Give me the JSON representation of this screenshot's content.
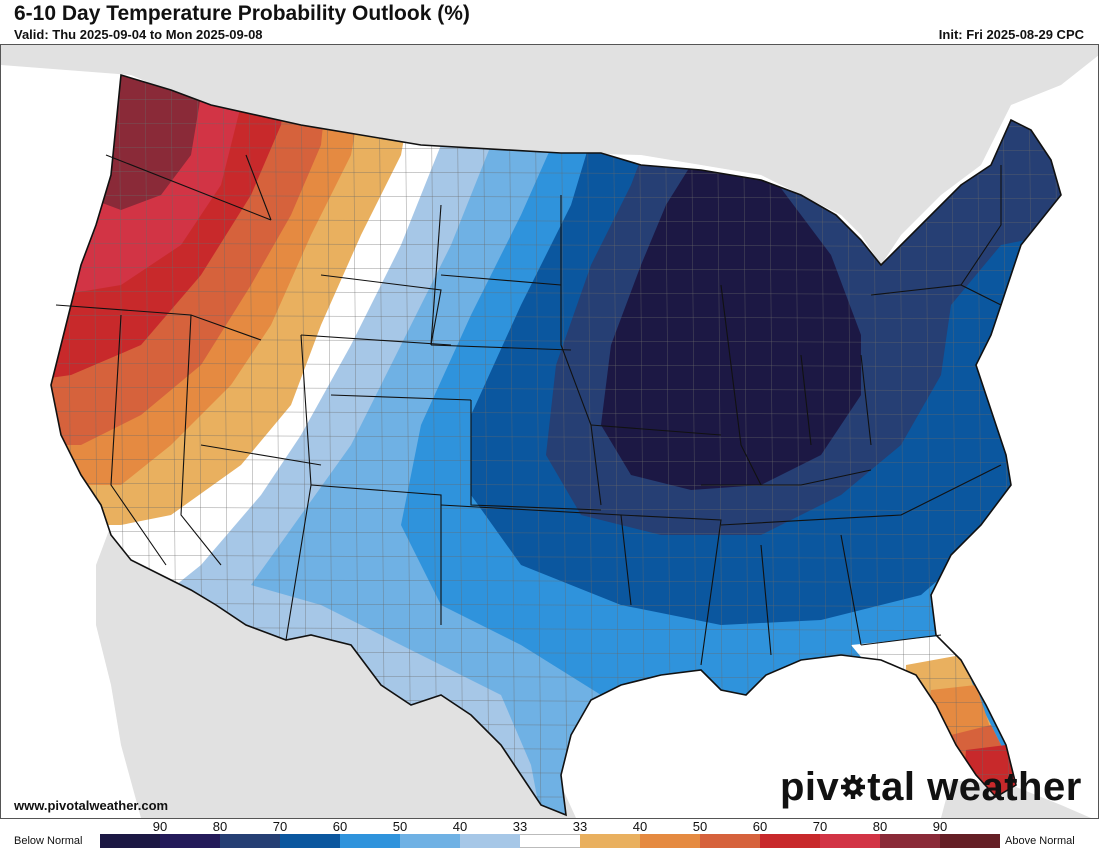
{
  "header": {
    "title": "6-10 Day Temperature Probability Outlook (%)",
    "valid": "Valid: Thu 2025-09-04 to Mon 2025-09-08",
    "init": "Init: Fri 2025-08-29 CPC"
  },
  "footer": {
    "website": "www.pivotalweather.com",
    "brand_before": "piv",
    "brand_after": "tal weather"
  },
  "legend": {
    "left_label": "Below Normal",
    "right_label": "Above Normal",
    "tick_labels": [
      "90",
      "80",
      "70",
      "60",
      "50",
      "40",
      "33",
      "33",
      "40",
      "50",
      "60",
      "70",
      "80",
      "90"
    ],
    "colors": [
      "#1c1844",
      "#241b5a",
      "#263f74",
      "#0b579f",
      "#2f93dc",
      "#6fb1e4",
      "#a6c7e7",
      "#ffffff",
      "#e9b05f",
      "#e58a41",
      "#d6623c",
      "#c8292b",
      "#d23445",
      "#8a2a38",
      "#651f26"
    ]
  },
  "map": {
    "colors": {
      "background": "#ffffff",
      "non_us_land": "#e1e1e1",
      "us_boundary": "#111111",
      "county_lines": "#6a6a6a",
      "below_90": "#1c1844",
      "below_70": "#263f74",
      "below_60": "#0b579f",
      "below_50": "#2f93dc",
      "below_40": "#6fb1e4",
      "below_33": "#a6c7e7",
      "near_normal": "#ffffff",
      "above_33": "#e9b05f",
      "above_40": "#e58a41",
      "above_50": "#d6623c",
      "above_60": "#c8292b",
      "above_70": "#d23445",
      "above_80": "#8a2a38"
    }
  }
}
